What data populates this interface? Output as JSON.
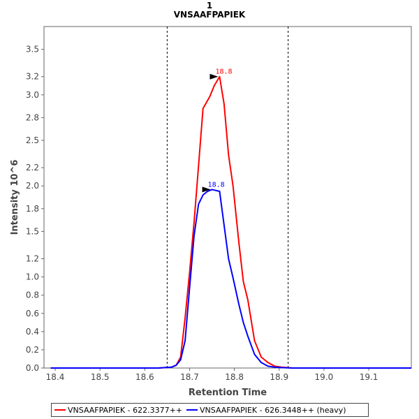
{
  "chart_data": {
    "type": "line",
    "title": "1",
    "subtitle": "VNSAAFPAPIEK",
    "xlabel": "Retention Time",
    "ylabel": "Intensity 10^6",
    "xlim": [
      18.375,
      19.195
    ],
    "ylim": [
      0,
      3.75
    ],
    "xticks": [
      "18.4",
      "18.5",
      "18.6",
      "18.7",
      "18.8",
      "18.9",
      "19.0",
      "19.1"
    ],
    "xtick_values": [
      18.4,
      18.5,
      18.6,
      18.7,
      18.8,
      18.9,
      19.0,
      19.1
    ],
    "yticks": [
      "0.0",
      "0.2",
      "0.4",
      "0.6",
      "0.8",
      "1.0",
      "1.2",
      "1.5",
      "1.8",
      "2.0",
      "2.2",
      "2.5",
      "2.8",
      "3.0",
      "3.2",
      "3.5"
    ],
    "ytick_values": [
      0.0,
      0.2,
      0.4,
      0.6,
      0.8,
      1.0,
      1.2,
      1.5,
      1.75,
      2.0,
      2.2,
      2.5,
      2.75,
      3.0,
      3.2,
      3.5
    ],
    "grid": false,
    "legend_position": "bottom",
    "integration_bounds": [
      18.65,
      18.92
    ],
    "series": [
      {
        "name": "VNSAAFPAPIEK - 622.3377++",
        "color": "#ff0000",
        "peak_label": "18.8",
        "peak_x": 18.767,
        "peak_y": 3.2,
        "x": [
          18.39,
          18.43,
          18.47,
          18.51,
          18.55,
          18.59,
          18.63,
          18.66,
          18.67,
          18.68,
          18.69,
          18.7,
          18.71,
          18.72,
          18.73,
          18.745,
          18.755,
          18.767,
          18.777,
          18.787,
          18.797,
          18.81,
          18.82,
          18.83,
          18.845,
          18.86,
          18.875,
          18.89,
          18.905,
          18.93,
          19.0,
          19.1,
          19.195
        ],
        "y": [
          0.0,
          0.0,
          0.0,
          0.0,
          0.0,
          0.0,
          0.0,
          0.01,
          0.03,
          0.12,
          0.55,
          1.05,
          1.6,
          2.22,
          2.85,
          2.98,
          3.1,
          3.2,
          2.9,
          2.34,
          2.0,
          1.38,
          0.95,
          0.75,
          0.3,
          0.12,
          0.06,
          0.02,
          0.01,
          0.0,
          0.0,
          0.0,
          0.0
        ]
      },
      {
        "name": "VNSAAFPAPIEK - 626.3448++ (heavy)",
        "color": "#0000ff",
        "peak_label": "18.8",
        "peak_x": 18.75,
        "peak_y": 1.96,
        "x": [
          18.39,
          18.43,
          18.47,
          18.51,
          18.55,
          18.59,
          18.63,
          18.66,
          18.67,
          18.68,
          18.69,
          18.7,
          18.71,
          18.72,
          18.73,
          18.74,
          18.75,
          18.767,
          18.777,
          18.787,
          18.797,
          18.81,
          18.82,
          18.83,
          18.845,
          18.86,
          18.875,
          18.89,
          18.905,
          18.93,
          19.0,
          19.1,
          19.195
        ],
        "y": [
          0.0,
          0.0,
          0.0,
          0.0,
          0.0,
          0.0,
          0.0,
          0.01,
          0.03,
          0.09,
          0.3,
          0.88,
          1.45,
          1.8,
          1.9,
          1.94,
          1.96,
          1.94,
          1.57,
          1.2,
          0.99,
          0.7,
          0.5,
          0.35,
          0.15,
          0.06,
          0.02,
          0.01,
          0.005,
          0.0,
          0.0,
          0.0,
          0.0
        ]
      }
    ]
  }
}
